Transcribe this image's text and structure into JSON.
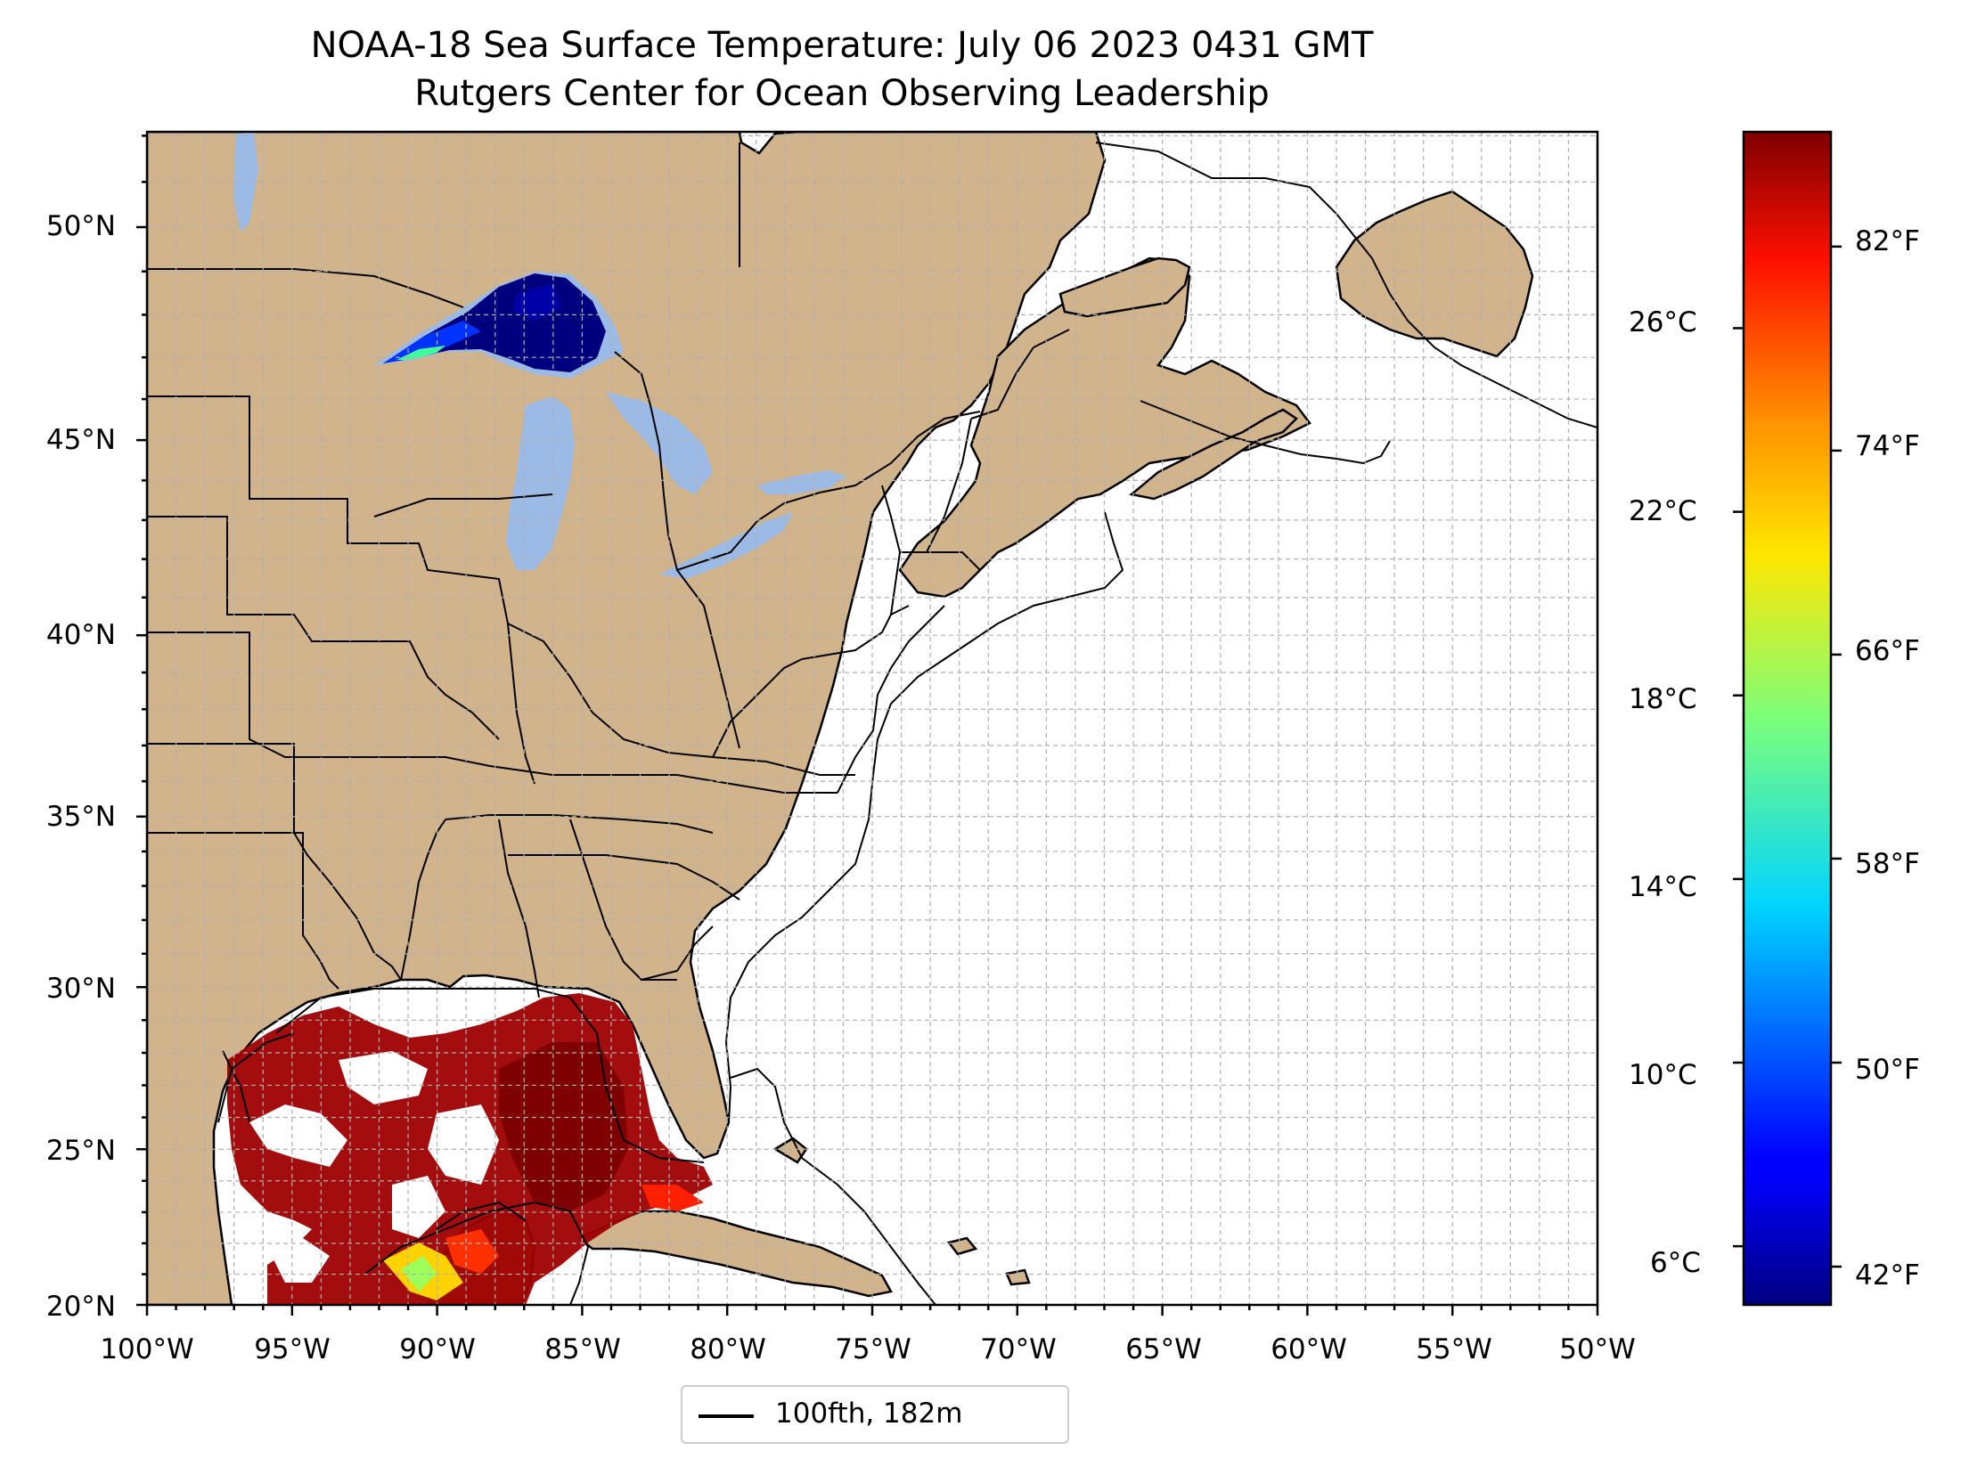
{
  "title": {
    "line1": "NOAA-18 Sea Surface Temperature: July 06 2023 0431 GMT",
    "line2": "Rutgers Center for Ocean Observing Leadership"
  },
  "map": {
    "type": "sea-surface-temperature map",
    "projection_extent": {
      "lon": [
        -100,
        -50
      ],
      "lat": [
        20,
        52.2
      ]
    },
    "graticule": "dashed grey grid lines",
    "lat_labels": [
      "50°N",
      "45°N",
      "40°N",
      "35°N",
      "30°N",
      "25°N",
      "20°N"
    ],
    "lon_labels": [
      "100°W",
      "95°W",
      "90°W",
      "85°W",
      "80°W",
      "75°W",
      "70°W",
      "65°W",
      "60°W",
      "55°W",
      "50°W"
    ],
    "colors": {
      "land": "#d2b48c",
      "lakes": "#9bbbe6",
      "ocean_nodata": "#ffffff",
      "coast": "#000000"
    }
  },
  "colorbar": {
    "colormap": "jet",
    "celsius_labels": [
      "26°C",
      "22°C",
      "18°C",
      "14°C",
      "10°C",
      "6°C"
    ],
    "fahrenheit_labels": [
      "82°F",
      "74°F",
      "66°F",
      "58°F",
      "50°F",
      "42°F"
    ],
    "range_f": [
      40.5,
      86.5
    ]
  },
  "legend": {
    "label": "100fth, 182m"
  },
  "sst_observations": {
    "gulf_of_mexico": "mostly 80–86°F (dark red/red) with cloud gaps; some 70–75°F near Yucatan",
    "lake_superior": "mostly 41–46°F (dark blue) with 55–65°F along south-west shore"
  }
}
